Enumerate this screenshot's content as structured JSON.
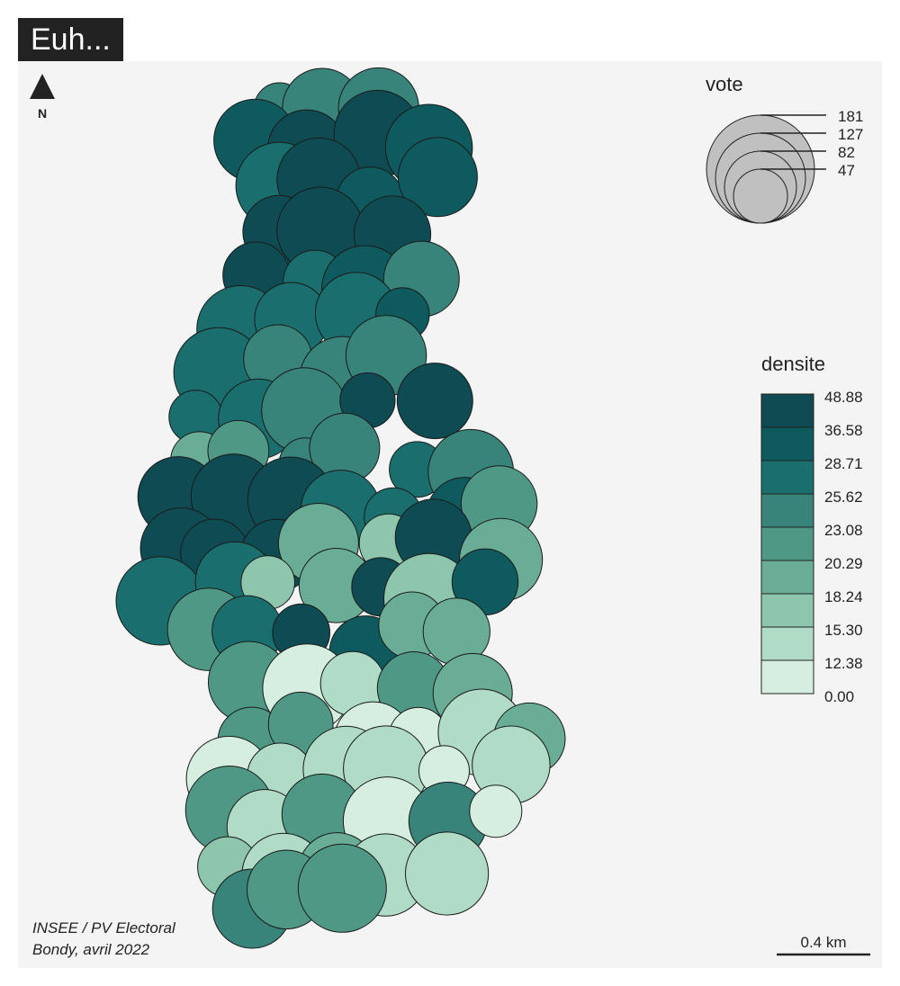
{
  "title": "Euh...",
  "north_arrow": {
    "icon": "north-arrow-icon",
    "label": "N"
  },
  "vote_legend": {
    "title": "vote",
    "values": [
      "181",
      "127",
      "82",
      "47"
    ],
    "fill": "#c0c0c0"
  },
  "density_legend": {
    "title": "densite",
    "breaks": [
      "48.88",
      "36.58",
      "28.71",
      "25.62",
      "23.08",
      "20.29",
      "18.24",
      "15.30",
      "12.38",
      "0.00"
    ],
    "colors": [
      "#0f4b52",
      "#0f5a5e",
      "#1b6e6e",
      "#38837a",
      "#509886",
      "#6aad96",
      "#8ec5ad",
      "#b0dbc6",
      "#d6eee0"
    ]
  },
  "source": {
    "line1": "INSEE / PV Electoral",
    "line2": "Bondy, avril 2022"
  },
  "scale_bar": {
    "label": "0.4 km"
  }
}
